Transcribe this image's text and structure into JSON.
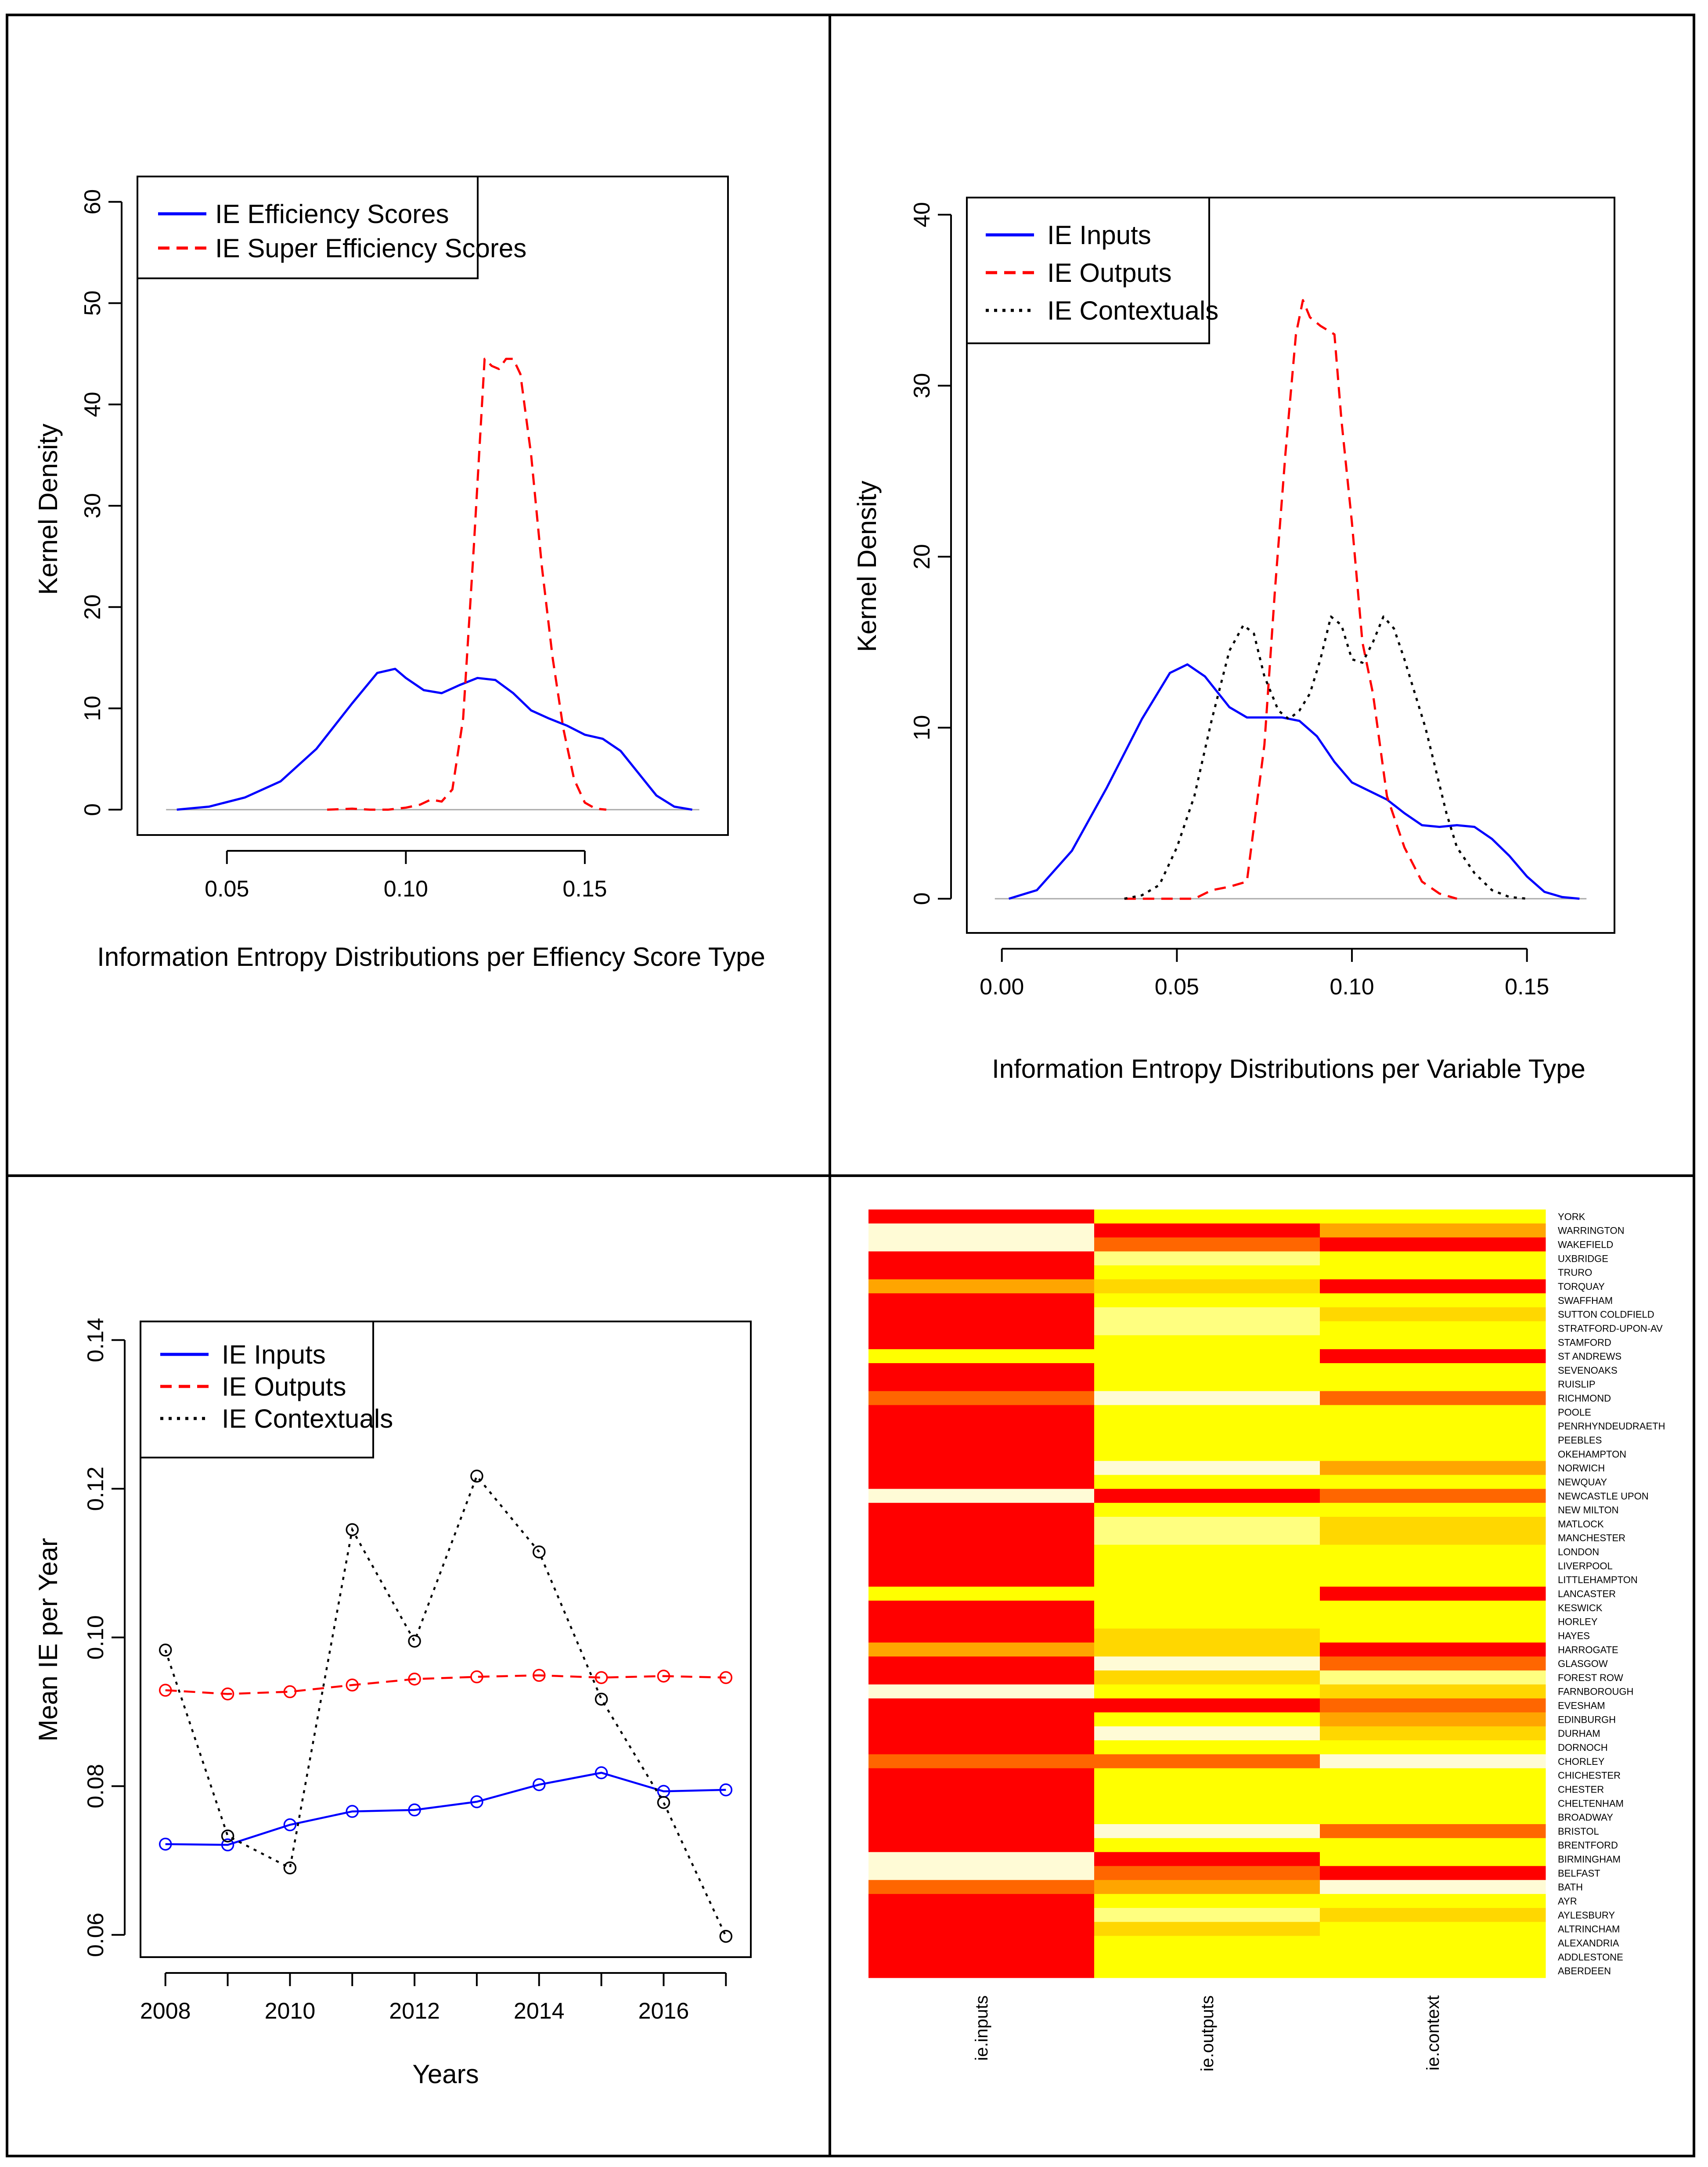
{
  "chart_data": [
    {
      "type": "line",
      "panel": "top-left",
      "title": "",
      "xlabel": "Information Entropy Distributions per Effiency Score Type",
      "ylabel": "Kernel Density",
      "xticks": [
        "0.05",
        "0.10",
        "0.15"
      ],
      "yticks": [
        "0",
        "10",
        "20",
        "30",
        "40",
        "50",
        "60"
      ],
      "xlim": [
        0.025,
        0.19
      ],
      "ylim": [
        -2.5,
        62.5
      ],
      "legend": {
        "position": "top-left",
        "entries": [
          "IE Efficiency Scores",
          "IE Super Efficiency Scores"
        ]
      },
      "series": [
        {
          "name": "IE Efficiency Scores",
          "color": "#0000ff",
          "dash": "solid",
          "x": [
            0.036,
            0.045,
            0.055,
            0.065,
            0.075,
            0.085,
            0.092,
            0.097,
            0.1,
            0.105,
            0.11,
            0.115,
            0.12,
            0.125,
            0.13,
            0.135,
            0.14,
            0.145,
            0.15,
            0.155,
            0.16,
            0.165,
            0.17,
            0.175,
            0.18
          ],
          "y": [
            0,
            0.3,
            1.2,
            2.8,
            6,
            10.5,
            13.5,
            13.9,
            13,
            11.8,
            11.5,
            12.3,
            13,
            12.8,
            11.5,
            9.8,
            9,
            8.3,
            7.4,
            7,
            5.8,
            3.6,
            1.4,
            0.3,
            0
          ]
        },
        {
          "name": "IE Super Efficiency Scores",
          "color": "#ff0000",
          "dash": "dashed",
          "x": [
            0.078,
            0.085,
            0.09,
            0.095,
            0.1,
            0.104,
            0.107,
            0.11,
            0.113,
            0.116,
            0.119,
            0.122,
            0.124,
            0.126,
            0.128,
            0.13,
            0.132,
            0.135,
            0.138,
            0.141,
            0.144,
            0.147,
            0.15,
            0.153,
            0.156
          ],
          "y": [
            0,
            0.1,
            0,
            0,
            0.2,
            0.5,
            1,
            0.8,
            2,
            9,
            26,
            44.5,
            43.8,
            43.5,
            44.5,
            44.5,
            43,
            35,
            24,
            15,
            8,
            3,
            0.7,
            0.1,
            0
          ]
        }
      ]
    },
    {
      "type": "line",
      "panel": "top-right",
      "title": "",
      "xlabel": "Information Entropy Distributions per Variable Type",
      "ylabel": "Kernel Density",
      "xticks": [
        "0.00",
        "0.05",
        "0.10",
        "0.15"
      ],
      "yticks": [
        "0",
        "10",
        "20",
        "30",
        "40"
      ],
      "xlim": [
        -0.01,
        0.175
      ],
      "ylim": [
        -2.0,
        41.0
      ],
      "legend": {
        "position": "top-left",
        "entries": [
          "IE Inputs",
          "IE Outputs",
          "IE Contextuals"
        ]
      },
      "series": [
        {
          "name": "IE Inputs",
          "color": "#0000ff",
          "dash": "solid",
          "x": [
            0.002,
            0.01,
            0.02,
            0.03,
            0.04,
            0.048,
            0.053,
            0.058,
            0.065,
            0.07,
            0.08,
            0.085,
            0.09,
            0.095,
            0.1,
            0.105,
            0.11,
            0.115,
            0.12,
            0.125,
            0.13,
            0.135,
            0.14,
            0.145,
            0.15,
            0.155,
            0.16,
            0.165
          ],
          "y": [
            0,
            0.5,
            2.8,
            6.5,
            10.5,
            13.2,
            13.7,
            13,
            11.2,
            10.6,
            10.6,
            10.4,
            9.5,
            8,
            6.8,
            6.3,
            5.8,
            5,
            4.3,
            4.2,
            4.3,
            4.2,
            3.5,
            2.5,
            1.3,
            0.4,
            0.1,
            0
          ]
        },
        {
          "name": "IE Outputs",
          "color": "#ff0000",
          "dash": "dashed",
          "x": [
            0.035,
            0.045,
            0.055,
            0.06,
            0.065,
            0.07,
            0.075,
            0.078,
            0.081,
            0.084,
            0.086,
            0.088,
            0.091,
            0.095,
            0.097,
            0.1,
            0.103,
            0.106,
            0.11,
            0.115,
            0.12,
            0.125,
            0.13
          ],
          "y": [
            0,
            0,
            0,
            0.5,
            0.7,
            1,
            9,
            18,
            26,
            33,
            35,
            34,
            33.5,
            33,
            28,
            22,
            15,
            12,
            6,
            3,
            1,
            0.3,
            0
          ],
          "fragments": [
            [
              "0.0",
              "0.5"
            ]
          ]
        },
        {
          "name": "IE Contextuals",
          "color": "#000000",
          "dash": "dotted",
          "x": [
            0.035,
            0.04,
            0.045,
            0.05,
            0.055,
            0.06,
            0.065,
            0.069,
            0.072,
            0.075,
            0.079,
            0.082,
            0.085,
            0.088,
            0.091,
            0.094,
            0.097,
            0.1,
            0.103,
            0.106,
            0.109,
            0.112,
            0.115,
            0.118,
            0.121,
            0.124,
            0.127,
            0.13,
            0.135,
            0.14,
            0.145,
            0.15
          ],
          "y": [
            0,
            0.2,
            0.8,
            3,
            6,
            10.5,
            14.5,
            16,
            15.5,
            13,
            11,
            10.5,
            11,
            12,
            14,
            16.5,
            16,
            14,
            13.8,
            15,
            16.5,
            15.8,
            14,
            12,
            10,
            7.5,
            5,
            3,
            1.5,
            0.5,
            0.1,
            0
          ]
        }
      ]
    },
    {
      "type": "line",
      "panel": "bottom-left",
      "title": "",
      "xlabel": "Years",
      "ylabel": "Mean IE per Year",
      "xticks": [
        "2008",
        "2010",
        "2012",
        "2014",
        "2016"
      ],
      "yticks": [
        "0.06",
        "0.08",
        "0.10",
        "0.12",
        "0.14"
      ],
      "xlim": [
        2007.6,
        2017.4
      ],
      "ylim": [
        0.057,
        0.1425
      ],
      "legend": {
        "position": "top-left",
        "entries": [
          "IE Inputs",
          "IE Outputs",
          "IE Contextuals"
        ]
      },
      "x": [
        2008,
        2009,
        2010,
        2011,
        2012,
        2013,
        2014,
        2015,
        2016,
        2017
      ],
      "series": [
        {
          "name": "IE Inputs",
          "color": "#0000ff",
          "dash": "solid",
          "values": [
            0.0722,
            0.0721,
            0.0748,
            0.0766,
            0.0768,
            0.0779,
            0.0802,
            0.0818,
            0.0793,
            0.0795
          ]
        },
        {
          "name": "IE Outputs",
          "color": "#ff0000",
          "dash": "dashed",
          "values": [
            0.0929,
            0.0924,
            0.0927,
            0.0936,
            0.0944,
            0.0947,
            0.0949,
            0.0946,
            0.0948,
            0.0946
          ]
        },
        {
          "name": "IE Contextuals",
          "color": "#000000",
          "dash": "dotted",
          "values": [
            0.0983,
            0.0733,
            0.069,
            0.1145,
            0.0995,
            0.1217,
            0.1115,
            0.0917,
            0.0778,
            0.0598
          ]
        }
      ]
    },
    {
      "type": "heatmap",
      "panel": "bottom-right",
      "title": "",
      "columns": [
        "ie.inputs",
        "ie.outputs",
        "ie.context"
      ],
      "rows": [
        "YORK",
        "WARRINGTON",
        "WAKEFIELD",
        "UXBRIDGE",
        "TRURO",
        "TORQUAY",
        "SWAFFHAM",
        "SUTTON COLDFIELD",
        "STRATFORD-UPON-AV",
        "STAMFORD",
        "ST ANDREWS",
        "SEVENOAKS",
        "RUISLIP",
        "RICHMOND",
        "POOLE",
        "PENRHYNDEUDRAETH",
        "PEEBLES",
        "OKEHAMPTON",
        "NORWICH",
        "NEWQUAY",
        "NEWCASTLE UPON",
        "NEW MILTON",
        "MATLOCK",
        "MANCHESTER",
        "LONDON",
        "LIVERPOOL",
        "LITTLEHAMPTON",
        "LANCASTER",
        "KESWICK",
        "HORLEY",
        "HAYES",
        "HARROGATE",
        "GLASGOW",
        "FOREST ROW",
        "FARNBOROUGH",
        "EVESHAM",
        "EDINBURGH",
        "DURHAM",
        "DORNOCH",
        "CHORLEY",
        "CHICHESTER",
        "CHESTER",
        "CHELTENHAM",
        "BROADWAY",
        "BRISTOL",
        "BRENTFORD",
        "BIRMINGHAM",
        "BELFAST",
        "BATH",
        "AYR",
        "AYLESBURY",
        "ALTRINCHAM",
        "ALEXANDRIA",
        "ADDLESTONE",
        "ABERDEEN"
      ],
      "palette": [
        "#ff0000",
        "#ff6600",
        "#ffa500",
        "#ffd700",
        "#ffff00",
        "#ffff80",
        "#fffbd6"
      ],
      "palette_note": "level index 0 = red (low) ... 6 = pale (high)",
      "values": [
        [
          0,
          4,
          4
        ],
        [
          6,
          0,
          2
        ],
        [
          6,
          1,
          0
        ],
        [
          0,
          5,
          4
        ],
        [
          0,
          4,
          4
        ],
        [
          2,
          3,
          0
        ],
        [
          0,
          4,
          4
        ],
        [
          0,
          5,
          3
        ],
        [
          0,
          5,
          4
        ],
        [
          0,
          4,
          4
        ],
        [
          4,
          4,
          0
        ],
        [
          0,
          4,
          4
        ],
        [
          0,
          4,
          4
        ],
        [
          1,
          6,
          1
        ],
        [
          0,
          4,
          4
        ],
        [
          0,
          4,
          4
        ],
        [
          0,
          4,
          4
        ],
        [
          0,
          4,
          4
        ],
        [
          0,
          6,
          2
        ],
        [
          0,
          4,
          4
        ],
        [
          6,
          0,
          1
        ],
        [
          0,
          4,
          4
        ],
        [
          0,
          5,
          3
        ],
        [
          0,
          5,
          3
        ],
        [
          0,
          4,
          4
        ],
        [
          0,
          4,
          4
        ],
        [
          0,
          4,
          4
        ],
        [
          4,
          4,
          0
        ],
        [
          0,
          4,
          4
        ],
        [
          0,
          4,
          4
        ],
        [
          0,
          3,
          4
        ],
        [
          2,
          3,
          0
        ],
        [
          0,
          6,
          1
        ],
        [
          0,
          3,
          5
        ],
        [
          6,
          4,
          3
        ],
        [
          0,
          0,
          1
        ],
        [
          0,
          4,
          2
        ],
        [
          0,
          6,
          3
        ],
        [
          0,
          4,
          4
        ],
        [
          1,
          1,
          6
        ],
        [
          0,
          4,
          4
        ],
        [
          0,
          4,
          4
        ],
        [
          0,
          4,
          4
        ],
        [
          0,
          4,
          4
        ],
        [
          0,
          6,
          1
        ],
        [
          0,
          4,
          4
        ],
        [
          6,
          0,
          4
        ],
        [
          6,
          1,
          0
        ],
        [
          1,
          2,
          6
        ],
        [
          0,
          4,
          4
        ],
        [
          0,
          5,
          3
        ],
        [
          0,
          3,
          4
        ],
        [
          0,
          4,
          4
        ],
        [
          0,
          4,
          4
        ],
        [
          0,
          4,
          4
        ]
      ]
    }
  ]
}
